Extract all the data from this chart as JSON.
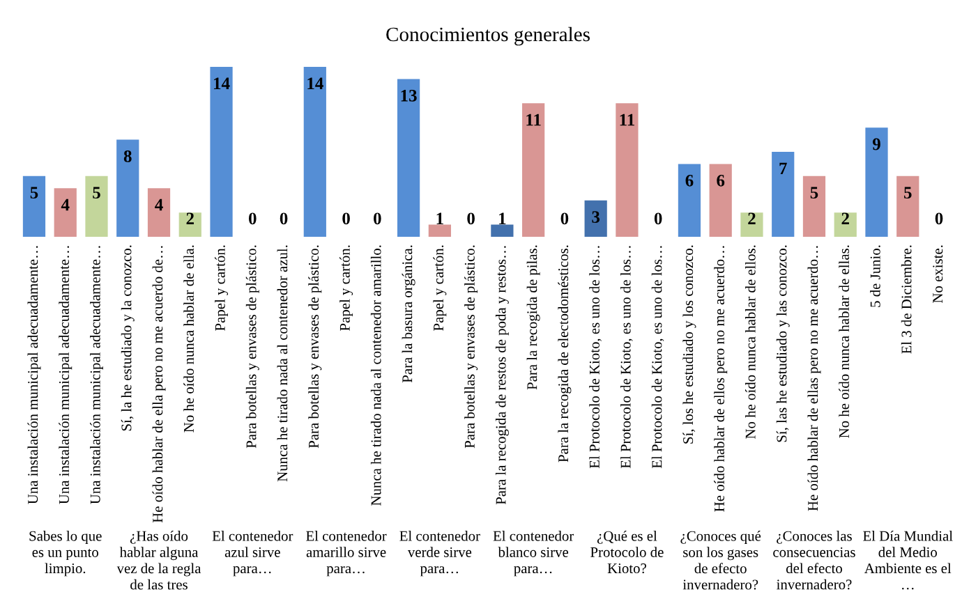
{
  "chart_data": {
    "type": "bar",
    "title": "Conocimientos generales",
    "categories": [
      "Una instalación municipal adecuadamente…",
      "Una instalación municipal adecuadamente…",
      "Una instalación municipal adecuadamente…",
      "Sí, la he estudiado y la conozco.",
      "He oído hablar de ella pero no me acuerdo de…",
      "No he oído nunca hablar de ella.",
      "Papel y cartón.",
      "Para botellas y envases de plástico.",
      "Nunca he tirado nada al contenedor azul.",
      "Para botellas y envases de plástico.",
      "Papel y cartón.",
      "Nunca he tirado nada al contenedor amarillo.",
      "Para la basura orgánica.",
      "Papel y cartón.",
      "Para botellas y envases de plástico.",
      "Para la recogida de restos de poda y restos…",
      "Para la recogida de pilas.",
      "Para la recogida de electodomésticos.",
      "El Protocolo de Kioto, es uno de los…",
      "El Protocolo de Kioto, es uno de los…",
      "El Protocolo de Kioto, es uno de los…",
      "Sí, los he estudiado y los conozco.",
      "He oído hablar de ellos pero no me acuerdo…",
      "No he oído nunca hablar de ellos.",
      "Sí, las he estudiado y las conozco.",
      "He oído hablar de ellas pero no me acuerdo…",
      "No he oído nunca hablar de ellas.",
      "5 de Junio.",
      "El 3 de Diciembre.",
      "No existe."
    ],
    "values": [
      5,
      4,
      5,
      8,
      4,
      2,
      14,
      0,
      0,
      14,
      0,
      0,
      13,
      1,
      0,
      1,
      11,
      0,
      3,
      11,
      0,
      6,
      6,
      2,
      7,
      5,
      2,
      9,
      5,
      0
    ],
    "colors": [
      "#558ed5",
      "#d99694",
      "#c3d69b",
      "#558ed5",
      "#d99694",
      "#c3d69b",
      "#558ed5",
      "#d99694",
      "#c3d69b",
      "#558ed5",
      "#d99694",
      "#c3d69b",
      "#558ed5",
      "#d99694",
      "#c3d69b",
      "#4371ad",
      "#d99694",
      "#c3d69b",
      "#4371ad",
      "#d99694",
      "#c3d69b",
      "#558ed5",
      "#d99694",
      "#c3d69b",
      "#558ed5",
      "#d99694",
      "#c3d69b",
      "#558ed5",
      "#d99694",
      "#c3d69b"
    ],
    "data_labels": true,
    "tick_labels": "x",
    "annotations": [
      "Sabes lo que\nes un punto\nlimpio.",
      "¿Has oído\nhablar alguna\nvez de la regla\nde las tres",
      "El contenedor\nazul sirve\npara…",
      "El contenedor\namarillo sirve\npara…",
      "El contenedor\nverde sirve\npara…",
      "El contenedor\nblanco sirve\npara…",
      "¿Qué es el\nProtocolo de\nKioto?",
      "¿Conoces qué\nson los gases\nde efecto\ninvernadero?",
      "¿Conoces las\nconsecuencias\ndel efecto\ninvernadero?",
      "El Día Mundial\ndel Medio\nAmbiente es el\n…"
    ]
  }
}
